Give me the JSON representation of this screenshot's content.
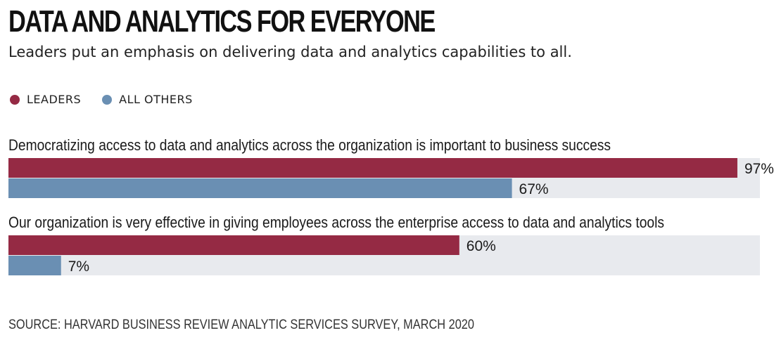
{
  "header": {
    "title": "DATA AND ANALYTICS FOR EVERYONE",
    "subtitle": "Leaders put an emphasis on delivering data and analytics capabilities to all."
  },
  "legend": {
    "items": [
      {
        "label": "LEADERS",
        "color": "#952a44"
      },
      {
        "label": "ALL OTHERS",
        "color": "#6a8fb3"
      }
    ]
  },
  "footer": {
    "source": "SOURCE: HARVARD BUSINESS REVIEW ANALYTIC SERVICES SURVEY, MARCH 2020"
  },
  "chart_data": {
    "type": "bar",
    "orientation": "horizontal",
    "categories": [
      "Democratizing access to data and analytics across the organization is important to business success",
      "Our organization is very effective in giving employees across the enterprise access to data and analytics tools"
    ],
    "series": [
      {
        "name": "LEADERS",
        "values": [
          97,
          60
        ],
        "labels": [
          "97%",
          "60%"
        ],
        "color": "#952a44"
      },
      {
        "name": "ALL OTHERS",
        "values": [
          67,
          7
        ],
        "labels": [
          "67%",
          "7%"
        ],
        "color": "#6a8fb3"
      }
    ],
    "xlim": [
      0,
      100
    ],
    "track_color": "#e8eaee",
    "grid": false,
    "legend_position": "top-left"
  }
}
